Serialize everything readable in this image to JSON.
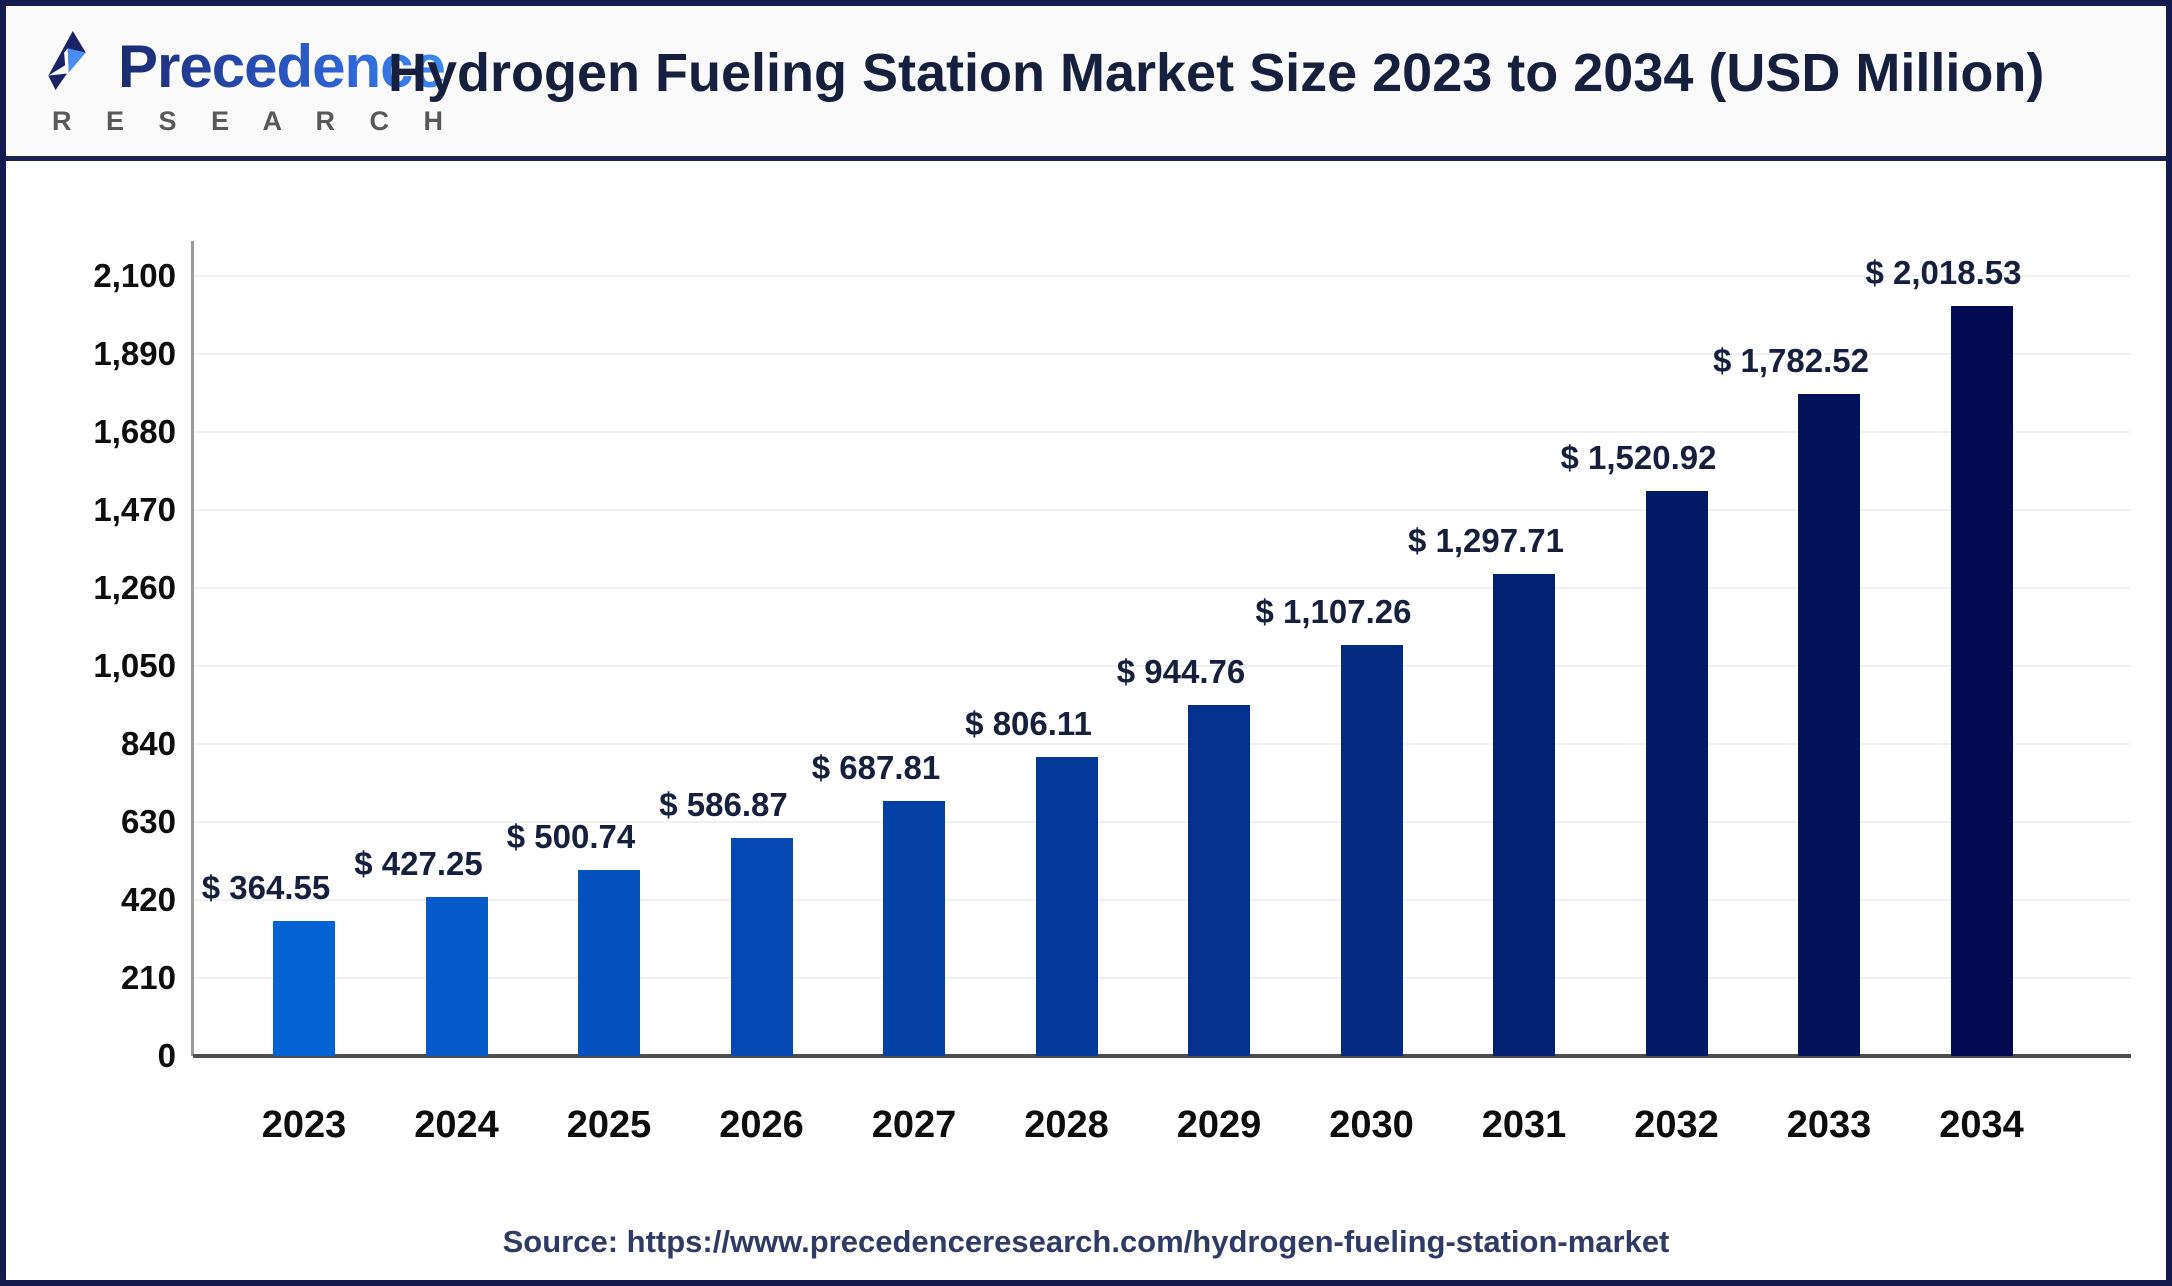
{
  "header": {
    "logo": {
      "brand": "Precedence",
      "sub": "R E S E A R C H",
      "mark_icon": "paper-plane-logo-icon",
      "brand_color_start": "#1c2a6e",
      "brand_color_end": "#3f8af2",
      "sub_color": "#595959"
    },
    "title": "Hydrogen Fueling Station Market Size 2023 to 2034 (USD Million)"
  },
  "chart_data": {
    "type": "bar",
    "title": "Hydrogen Fueling Station Market Size 2023 to 2034 (USD Million)",
    "xlabel": "",
    "ylabel": "",
    "ylim": [
      0,
      2100
    ],
    "grid": "horizontal",
    "legend": "none",
    "categories": [
      "2023",
      "2024",
      "2025",
      "2026",
      "2027",
      "2028",
      "2029",
      "2030",
      "2031",
      "2032",
      "2033",
      "2034"
    ],
    "values": [
      364.55,
      427.25,
      500.74,
      586.87,
      687.81,
      806.11,
      944.76,
      1107.26,
      1297.71,
      1520.92,
      1782.52,
      2018.53
    ],
    "data_labels": [
      "$ 364.55",
      "$ 427.25",
      "$ 500.74",
      "$ 586.87",
      "$ 687.81",
      "$ 806.11",
      "$ 944.76",
      "$ 1,107.26",
      "$ 1,297.71",
      "$ 1,520.92",
      "$ 1,782.52",
      "$ 2,018.53"
    ],
    "bar_colors": [
      "#0561D6",
      "#0559CA",
      "#0451BE",
      "#0449B1",
      "#0441A5",
      "#043999",
      "#03318D",
      "#032981",
      "#032174",
      "#031A68",
      "#02125C",
      "#020A50"
    ],
    "y_ticks": [
      {
        "value": 0,
        "label": "0"
      },
      {
        "value": 210,
        "label": "210"
      },
      {
        "value": 420,
        "label": "420"
      },
      {
        "value": 630,
        "label": "630"
      },
      {
        "value": 840,
        "label": "840"
      },
      {
        "value": 1050,
        "label": "1,050"
      },
      {
        "value": 1260,
        "label": "1,260"
      },
      {
        "value": 1470,
        "label": "1,470"
      },
      {
        "value": 1680,
        "label": "1,680"
      },
      {
        "value": 1890,
        "label": "1,890"
      },
      {
        "value": 2100,
        "label": "2,100"
      }
    ]
  },
  "footer": {
    "source": "Source: https://www.precedenceresearch.com/hydrogen-fueling-station-market"
  }
}
